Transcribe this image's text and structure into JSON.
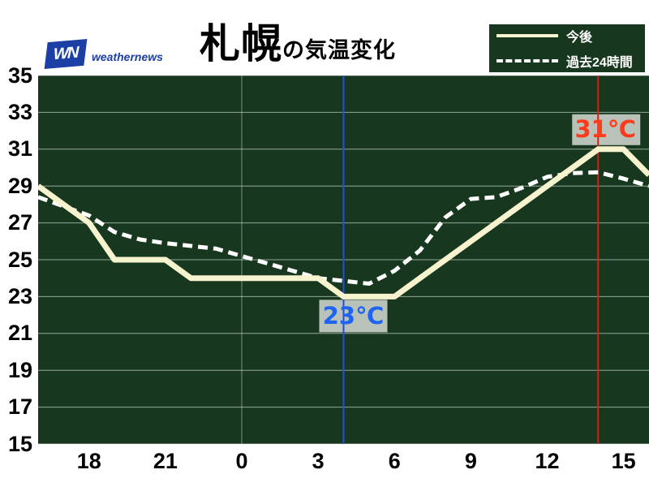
{
  "brand": {
    "logo_monogram": "WN",
    "logo_text": "weathernews",
    "logo_color": "#1b3fa5"
  },
  "header": {
    "title_city": "札幌",
    "title_suffix": "の気温変化"
  },
  "legend": {
    "items": [
      {
        "label": "今後",
        "style": "solid",
        "color": "#f7f3cf"
      },
      {
        "label": "過去24時間",
        "style": "dashed",
        "color": "#ffffff"
      }
    ]
  },
  "annotations": {
    "min": {
      "label": "23℃",
      "value": 23,
      "hour_offset": 12,
      "time": "04:00",
      "text_color": "#1f63f2",
      "line_color": "#1f4fe0"
    },
    "max": {
      "label": "31℃",
      "value": 31,
      "hour_offset": 22,
      "time": "14:00",
      "text_color": "#ff3b1c",
      "line_color": "#d42015"
    }
  },
  "colors": {
    "plot_background": "#17381e",
    "gridline": "rgba(255,255,255,0.55)",
    "vertical_gridline": "rgba(255,255,255,0.45)",
    "annotation_box": "#b8c2b8",
    "axis_text": "#000000"
  },
  "chart_data": {
    "type": "line",
    "title": "札幌の気温変化",
    "xlabel": "",
    "ylabel": "",
    "ylim": [
      15,
      35
    ],
    "y_ticks": [
      35,
      33,
      31,
      29,
      27,
      25,
      23,
      21,
      19,
      17,
      15
    ],
    "x_span_hours": 24,
    "x_start_hour": 16,
    "x_tick_labels": [
      "18",
      "21",
      "0",
      "3",
      "6",
      "9",
      "12",
      "15"
    ],
    "x_tick_hour_offsets": [
      2,
      5,
      8,
      11,
      14,
      17,
      20,
      23
    ],
    "midnight_gridline_offset": 8,
    "grid": true,
    "legend_position": "top-right",
    "hours": [
      16,
      17,
      18,
      19,
      20,
      21,
      22,
      23,
      0,
      1,
      2,
      3,
      4,
      5,
      6,
      7,
      8,
      9,
      10,
      11,
      12,
      13,
      14,
      15,
      16
    ],
    "series": [
      {
        "name": "今後",
        "style": "solid",
        "color": "#f7f3cf",
        "values": [
          29,
          28,
          27,
          25,
          25,
          25,
          24,
          24,
          24,
          24,
          24,
          24,
          23,
          23,
          23,
          24,
          25,
          26,
          27,
          28,
          29,
          30,
          31,
          31,
          29.6
        ]
      },
      {
        "name": "過去24時間",
        "style": "dashed",
        "color": "#ffffff",
        "values": [
          28.4,
          27.9,
          27.4,
          26.5,
          26.1,
          25.9,
          25.75,
          25.6,
          25.2,
          24.8,
          24.4,
          24.0,
          23.85,
          23.7,
          24.4,
          25.5,
          27.3,
          28.3,
          28.4,
          28.9,
          29.5,
          29.7,
          29.75,
          29.4,
          29.0
        ]
      }
    ]
  }
}
